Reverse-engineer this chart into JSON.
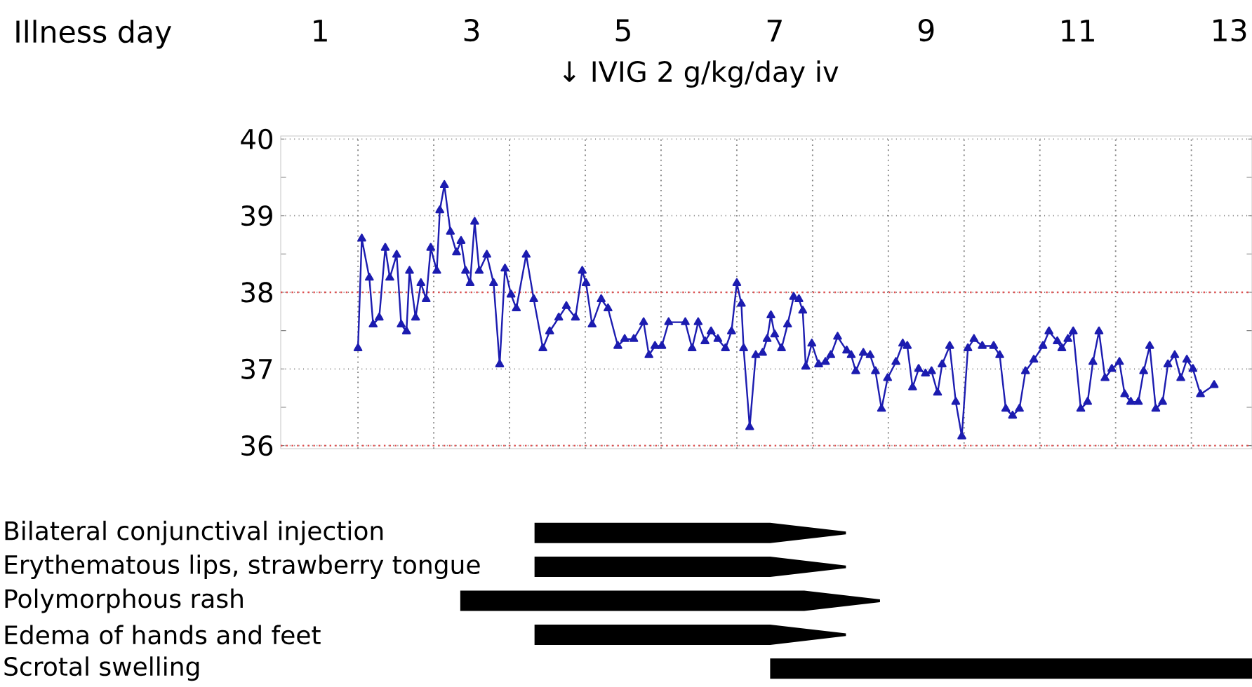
{
  "chart_data": [
    {
      "type": "line",
      "xlabel": "Illness day",
      "annotations": [
        "↓ IVIG 2 g/kg/day iv"
      ],
      "xlim": [
        0.48,
        13.3
      ],
      "ylim": [
        35.96,
        40.04
      ],
      "xticks": [
        1,
        {
          "value": 1.5,
          "label": null
        },
        {
          "value": 2.5,
          "label": null
        },
        3,
        {
          "value": 3.5,
          "label": null
        },
        {
          "value": 4.5,
          "label": null
        },
        5,
        {
          "value": 5.5,
          "label": null
        },
        {
          "value": 6.5,
          "label": null
        },
        7,
        {
          "value": 7.5,
          "label": null
        },
        {
          "value": 8.5,
          "label": null
        },
        9,
        {
          "value": 9.5,
          "label": null
        },
        {
          "value": 10.5,
          "label": null
        },
        11,
        {
          "value": 11.5,
          "label": null
        },
        {
          "value": 12.5,
          "label": null
        },
        13
      ],
      "yticks": [
        36,
        37,
        38,
        39,
        40
      ],
      "grid": true,
      "marker": "triangle",
      "line_style": "solid",
      "ref_lines": [
        {
          "axis": "y",
          "value": 38,
          "color": "#e05050",
          "line_style": "dotted"
        },
        {
          "axis": "y",
          "value": 36,
          "color": "#e05050",
          "line_style": "dotted"
        }
      ],
      "series": [
        {
          "color": "#1c1cb0",
          "x": [
            1.5,
            1.55,
            1.65,
            1.7,
            1.78,
            1.86,
            1.92,
            2.01,
            2.07,
            2.14,
            2.18,
            2.26,
            2.33,
            2.4,
            2.46,
            2.54,
            2.58,
            2.64,
            2.72,
            2.8,
            2.86,
            2.92,
            2.98,
            3.04,
            3.1,
            3.2,
            3.29,
            3.37,
            3.44,
            3.52,
            3.59,
            3.72,
            3.82,
            3.94,
            4.03,
            4.15,
            4.25,
            4.37,
            4.46,
            4.51,
            4.59,
            4.71,
            4.8,
            4.93,
            5.02,
            5.14,
            5.27,
            5.34,
            5.42,
            5.51,
            5.6,
            5.82,
            5.91,
            5.99,
            6.08,
            6.16,
            6.25,
            6.35,
            6.43,
            6.5,
            6.56,
            6.59,
            6.67,
            6.75,
            6.84,
            6.9,
            6.95,
            7.0,
            7.09,
            7.17,
            7.25,
            7.32,
            7.37,
            7.41,
            7.49,
            7.58,
            7.67,
            7.74,
            7.83,
            7.95,
            8.01,
            8.07,
            8.17,
            8.26,
            8.33,
            8.41,
            8.49,
            8.6,
            8.69,
            8.75,
            8.82,
            8.9,
            8.99,
            9.07,
            9.15,
            9.21,
            9.31,
            9.39,
            9.47,
            9.55,
            9.63,
            9.74,
            9.89,
            9.97,
            10.05,
            10.14,
            10.23,
            10.31,
            10.42,
            10.54,
            10.62,
            10.73,
            10.79,
            10.87,
            10.94,
            11.04,
            11.13,
            11.2,
            11.28,
            11.36,
            11.45,
            11.55,
            11.62,
            11.7,
            11.8,
            11.87,
            11.95,
            12.03,
            12.12,
            12.19,
            12.28,
            12.36,
            12.44,
            12.52,
            12.62,
            12.8
          ],
          "values": [
            37.27,
            38.7,
            38.19,
            37.58,
            37.67,
            38.58,
            38.19,
            38.49,
            37.58,
            37.49,
            38.28,
            37.67,
            38.12,
            37.91,
            38.58,
            38.28,
            39.07,
            39.4,
            38.79,
            38.52,
            38.67,
            38.28,
            38.12,
            38.92,
            38.28,
            38.49,
            38.12,
            37.06,
            38.31,
            37.97,
            37.79,
            38.49,
            37.91,
            37.27,
            37.49,
            37.67,
            37.82,
            37.67,
            38.28,
            38.12,
            37.58,
            37.91,
            37.79,
            37.3,
            37.39,
            37.39,
            37.61,
            37.18,
            37.3,
            37.3,
            37.61,
            37.61,
            37.27,
            37.61,
            37.36,
            37.49,
            37.39,
            37.27,
            37.49,
            38.12,
            37.85,
            37.27,
            36.24,
            37.18,
            37.21,
            37.39,
            37.7,
            37.45,
            37.27,
            37.58,
            37.94,
            37.91,
            37.76,
            37.03,
            37.33,
            37.06,
            37.09,
            37.18,
            37.42,
            37.24,
            37.18,
            36.97,
            37.21,
            37.18,
            36.97,
            36.48,
            36.88,
            37.09,
            37.33,
            37.3,
            36.76,
            37.0,
            36.94,
            36.97,
            36.69,
            37.06,
            37.3,
            36.57,
            36.12,
            37.27,
            37.39,
            37.3,
            37.3,
            37.18,
            36.48,
            36.39,
            36.48,
            36.97,
            37.12,
            37.3,
            37.49,
            37.36,
            37.27,
            37.39,
            37.49,
            36.48,
            36.57,
            37.09,
            37.49,
            36.88,
            37.0,
            37.09,
            36.67,
            36.57,
            36.57,
            36.97,
            37.3,
            36.48,
            36.57,
            37.06,
            37.18,
            36.88,
            37.12,
            37.0,
            36.67,
            36.79
          ]
        }
      ]
    },
    {
      "type": "bar",
      "orientation": "horizontal",
      "categories": [
        "Bilateral conjunctival injection",
        "Erythematous lips, strawberry tongue",
        "Polymorphous rash",
        "Edema of hands and feet",
        "Scrotal swelling"
      ],
      "base": [
        3.83,
        3.83,
        2.85,
        3.83,
        6.94
      ],
      "values": [
        4.11,
        4.11,
        5.54,
        4.11,
        6.36
      ],
      "color": "#000000",
      "xlim": [
        1,
        13.3
      ],
      "xticks": [
        1,
        3,
        5,
        7,
        9,
        11,
        13
      ],
      "tick_labels": "y"
    }
  ]
}
